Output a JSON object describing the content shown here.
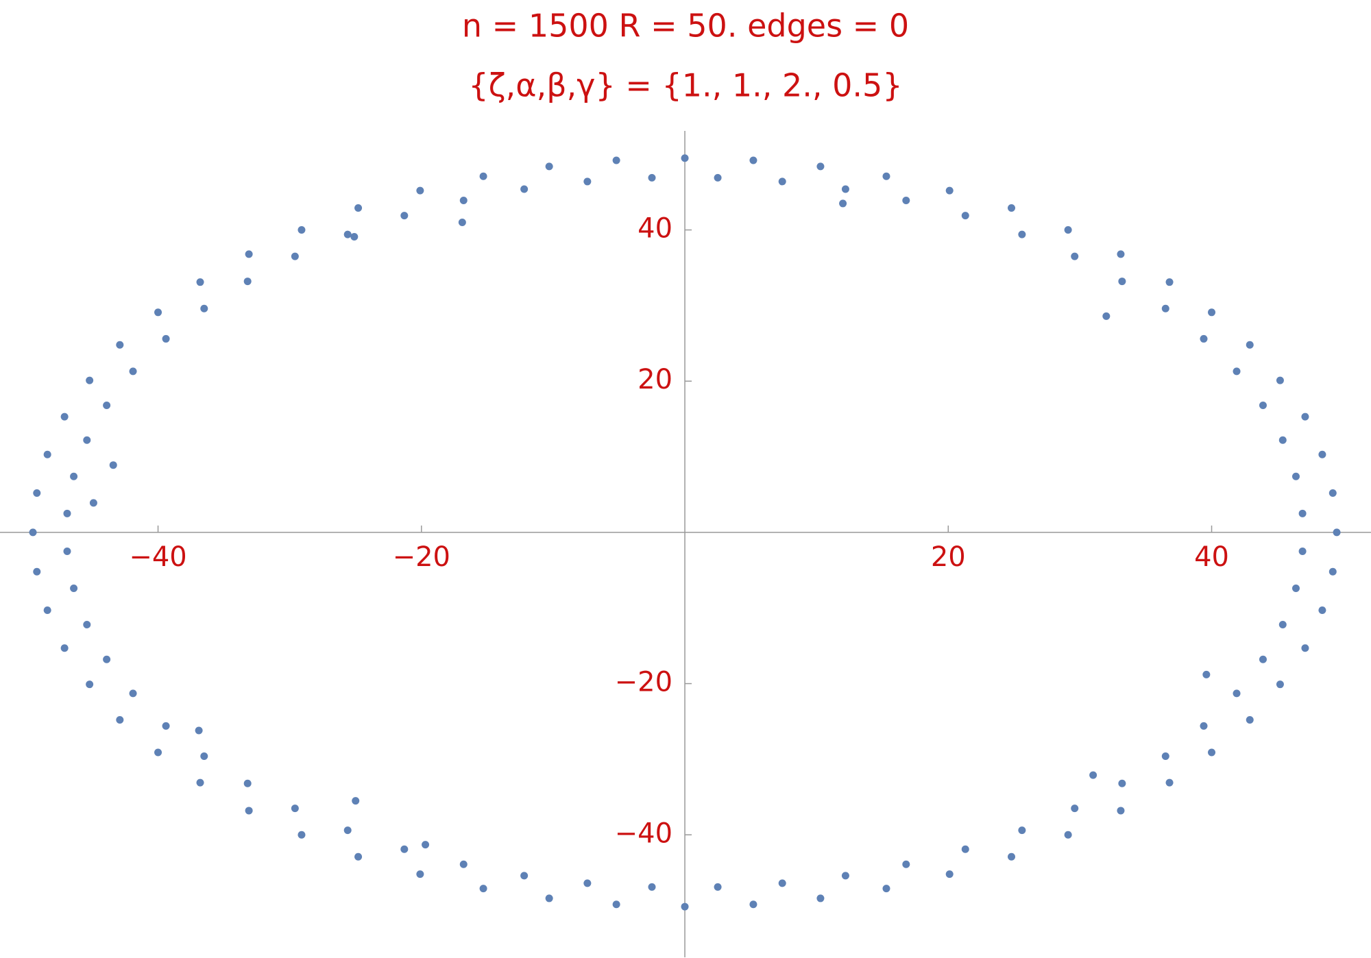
{
  "chart_data": {
    "type": "scatter",
    "title": "n = 1500  R = 50.  edges = 0",
    "subtitle": "{ζ,α,β,γ} = {1., 1., 2., 0.5}",
    "text_color": "#cc1111",
    "xlim": [
      -52,
      52.1
    ],
    "ylim": [
      -56.2,
      53.1
    ],
    "xticks": [
      {
        "value": -40,
        "label": "−40"
      },
      {
        "value": -20,
        "label": "−20"
      },
      20,
      40
    ],
    "yticks": [
      {
        "value": -40,
        "label": "−40"
      },
      {
        "value": -20,
        "label": "−20"
      },
      20,
      40
    ],
    "series": [
      {
        "color": "#5e81b5",
        "x": [
          49.5,
          49.2,
          48.4,
          47.1,
          45.2,
          42.9,
          40.0,
          36.8,
          33.1,
          29.1,
          24.8,
          20.1,
          15.3,
          10.3,
          5.2,
          0,
          -5.2,
          -10.3,
          -15.3,
          -20.1,
          -24.8,
          -29.1,
          -33.1,
          -36.8,
          -40.0,
          -42.9,
          -45.2,
          -47.1,
          -48.4,
          -49.2,
          -49.5,
          -49.2,
          -48.4,
          -47.1,
          -45.2,
          -42.9,
          -40.0,
          -36.8,
          -33.1,
          -29.1,
          -24.8,
          -20.1,
          -15.3,
          -10.3,
          -5.2,
          0,
          5.2,
          10.3,
          15.3,
          20.1,
          24.8,
          29.1,
          33.1,
          36.8,
          40.0,
          42.9,
          45.2,
          47.1,
          48.4,
          49.2,
          46.9,
          46.4,
          45.4,
          43.9,
          41.9,
          39.4,
          36.5,
          33.2,
          29.6,
          25.6,
          21.3,
          16.8,
          12.2,
          7.4,
          2.5,
          -2.5,
          -7.4,
          -12.2,
          -16.8,
          -21.3,
          -25.6,
          -29.6,
          -33.2,
          -36.5,
          -39.4,
          -41.9,
          -43.9,
          -45.4,
          -46.4,
          -46.9,
          -46.9,
          -46.4,
          -45.4,
          -43.9,
          -41.9,
          -39.4,
          -36.5,
          -33.2,
          -29.6,
          -25.6,
          -21.3,
          -16.8,
          -12.2,
          -7.4,
          -2.5,
          2.5,
          7.4,
          12.2,
          16.8,
          21.3,
          25.6,
          29.6,
          33.2,
          36.5,
          39.4,
          41.9,
          43.9,
          45.4,
          46.4,
          46.9,
          -43.4,
          -44.9,
          32.0,
          39.6,
          -25.0,
          -36.9,
          -19.7,
          31.0,
          -16.9,
          -25.1,
          12.0
        ],
        "y": [
          0,
          5.2,
          10.3,
          15.3,
          20.1,
          24.8,
          29.1,
          33.1,
          36.8,
          40.0,
          42.9,
          45.2,
          47.1,
          48.4,
          49.2,
          49.5,
          49.2,
          48.4,
          47.1,
          45.2,
          42.9,
          40.0,
          36.8,
          33.1,
          29.1,
          24.8,
          20.1,
          15.3,
          10.3,
          5.2,
          0,
          -5.2,
          -10.3,
          -15.3,
          -20.1,
          -24.8,
          -29.1,
          -33.1,
          -36.8,
          -40.0,
          -42.9,
          -45.2,
          -47.1,
          -48.4,
          -49.2,
          -49.5,
          -49.2,
          -48.4,
          -47.1,
          -45.2,
          -42.9,
          -40.0,
          -36.8,
          -33.1,
          -29.1,
          -24.8,
          -20.1,
          -15.3,
          -10.3,
          -5.2,
          2.5,
          7.4,
          12.2,
          16.8,
          21.3,
          25.6,
          29.6,
          33.2,
          36.5,
          39.4,
          41.9,
          43.9,
          45.4,
          46.4,
          46.9,
          46.9,
          46.4,
          45.4,
          43.9,
          41.9,
          39.4,
          36.5,
          33.2,
          29.6,
          25.6,
          21.3,
          16.8,
          12.2,
          7.4,
          2.5,
          -2.5,
          -7.4,
          -12.2,
          -16.8,
          -21.3,
          -25.6,
          -29.6,
          -33.2,
          -36.5,
          -39.4,
          -41.9,
          -43.9,
          -45.4,
          -46.4,
          -46.9,
          -46.9,
          -46.4,
          -45.4,
          -43.9,
          -41.9,
          -39.4,
          -36.5,
          -33.2,
          -29.6,
          -25.6,
          -21.3,
          -16.8,
          -12.2,
          -7.4,
          -2.5,
          8.9,
          3.9,
          28.6,
          -18.8,
          -35.5,
          -26.2,
          -41.3,
          -32.1,
          41.0,
          39.1,
          43.5
        ]
      }
    ]
  }
}
